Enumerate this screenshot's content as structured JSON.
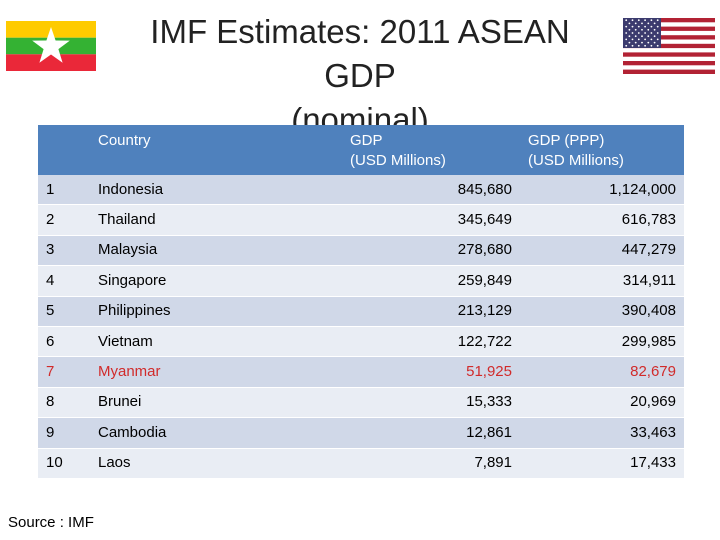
{
  "title": {
    "line1": "IMF Estimates: 2011 ASEAN GDP",
    "line2": "(nominal)"
  },
  "flags": {
    "left": "myanmar-flag",
    "right": "usa-flag"
  },
  "colors": {
    "header_bg": "#4f81bd",
    "row_odd": "#d0d8e8",
    "row_even": "#e9edf4",
    "highlight_text": "#d12b2b"
  },
  "table": {
    "headers": {
      "rank": "",
      "country": "Country",
      "gdp_line1": "GDP",
      "gdp_line2": "(USD Millions)",
      "ppp_line1": "GDP (PPP)",
      "ppp_line2": "(USD Millions)"
    },
    "rows": [
      {
        "rank": "1",
        "country": "Indonesia",
        "gdp": "845,680",
        "ppp": "1,124,000"
      },
      {
        "rank": "2",
        "country": "Thailand",
        "gdp": "345,649",
        "ppp": "616,783"
      },
      {
        "rank": "3",
        "country": "Malaysia",
        "gdp": "278,680",
        "ppp": "447,279"
      },
      {
        "rank": "4",
        "country": "Singapore",
        "gdp": "259,849",
        "ppp": "314,911"
      },
      {
        "rank": "5",
        "country": "Philippines",
        "gdp": "213,129",
        "ppp": "390,408"
      },
      {
        "rank": "6",
        "country": "Vietnam",
        "gdp": "122,722",
        "ppp": "299,985"
      },
      {
        "rank": "7",
        "country": "Myanmar",
        "gdp": "51,925",
        "ppp": "82,679"
      },
      {
        "rank": "8",
        "country": "Brunei",
        "gdp": "15,333",
        "ppp": "20,969"
      },
      {
        "rank": "9",
        "country": "Cambodia",
        "gdp": "12,861",
        "ppp": "33,463"
      },
      {
        "rank": "10",
        "country": "Laos",
        "gdp": "7,891",
        "ppp": "17,433"
      }
    ]
  },
  "source": "Source : IMF"
}
